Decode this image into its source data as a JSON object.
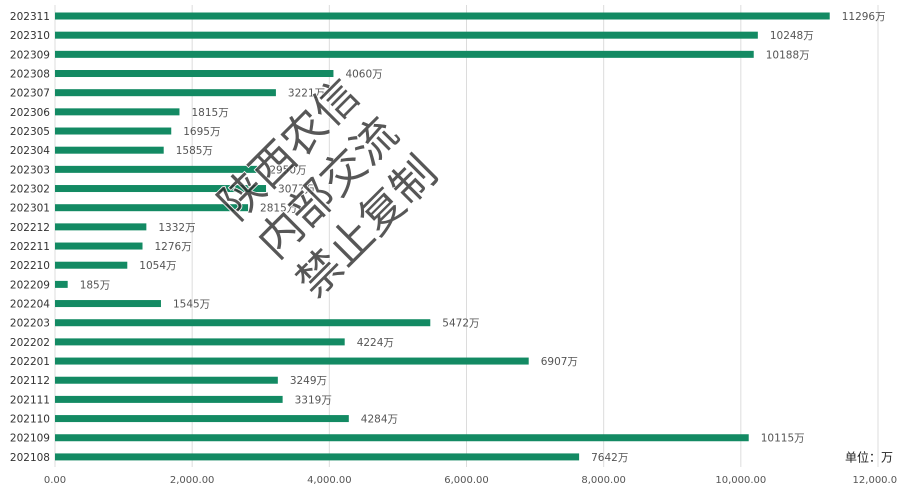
{
  "chart_data": {
    "type": "hbar",
    "categories": [
      "202311",
      "202310",
      "202309",
      "202308",
      "202307",
      "202306",
      "202305",
      "202304",
      "202303",
      "202302",
      "202301",
      "202212",
      "202211",
      "202210",
      "202209",
      "202204",
      "202203",
      "202202",
      "202201",
      "202112",
      "202111",
      "202110",
      "202109",
      "202108"
    ],
    "values": [
      11296,
      10248,
      10188,
      4060,
      3221,
      1815,
      1695,
      1585,
      2950,
      3077,
      2815,
      1332,
      1276,
      1054,
      185,
      1545,
      5472,
      4224,
      6907,
      3249,
      3319,
      4284,
      10115,
      7642
    ],
    "value_labels": [
      "11296万",
      "10248万",
      "10188万",
      "4060万",
      "3221万",
      "1815万",
      "1695万",
      "1585万",
      "2950万",
      "3077万",
      "2815万",
      "1332万",
      "1276万",
      "1054万",
      "185万",
      "1545万",
      "5472万",
      "4224万",
      "6907万",
      "3249万",
      "3319万",
      "4284万",
      "10115万",
      "7642万"
    ],
    "color": "#138a63",
    "xlim": [
      0,
      12000
    ],
    "xticks": [
      {
        "value": 0,
        "label": "0.00"
      },
      {
        "value": 2000,
        "label": "2,000.00"
      },
      {
        "value": 4000,
        "label": "4,000.00"
      },
      {
        "value": 6000,
        "label": "6,000.00"
      },
      {
        "value": 8000,
        "label": "8,000.00"
      },
      {
        "value": 10000,
        "label": "10,000.00"
      },
      {
        "value": 12000,
        "label": "12,000.00"
      }
    ],
    "grid": true,
    "unit_note": "单位：万",
    "watermark": [
      "陕西农信",
      "内部交流",
      "禁止复制"
    ]
  }
}
